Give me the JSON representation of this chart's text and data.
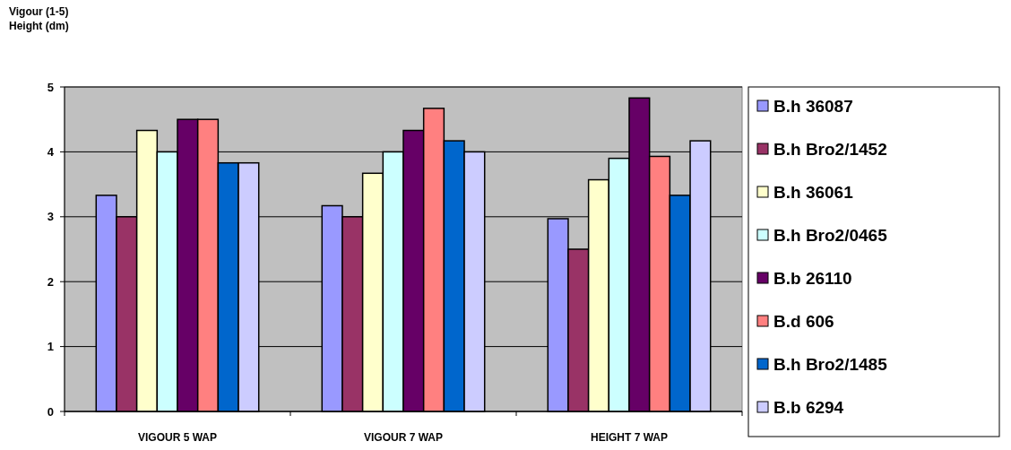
{
  "chart_data": {
    "type": "bar",
    "ylabel": "Vigour (1-5)\nHeight (dm)",
    "categories": [
      "VIGOUR 5 WAP",
      "VIGOUR 7 WAP",
      "HEIGHT 7 WAP"
    ],
    "series": [
      {
        "name": "B.h 36087",
        "color": "#9999ff",
        "values": [
          3.33,
          3.17,
          2.97
        ]
      },
      {
        "name": "B.h Bro2/1452",
        "color": "#993366",
        "values": [
          3,
          3,
          2.5
        ]
      },
      {
        "name": "B.h 36061",
        "color": "#ffffcc",
        "values": [
          4.33,
          3.67,
          3.57
        ]
      },
      {
        "name": "B.h Bro2/0465",
        "color": "#ccffff",
        "values": [
          4,
          4,
          3.9
        ]
      },
      {
        "name": "B.b 26110",
        "color": "#660066",
        "values": [
          4.5,
          4.33,
          4.83
        ]
      },
      {
        "name": "B.d 606",
        "color": "#ff8080",
        "values": [
          4.5,
          4.67,
          3.93
        ]
      },
      {
        "name": "B.h Bro2/1485",
        "color": "#0066cc",
        "values": [
          3.83,
          4.17,
          3.33
        ]
      },
      {
        "name": "B.b 6294",
        "color": "#ccccff",
        "values": [
          3.83,
          4,
          4.17
        ]
      }
    ],
    "ylim": [
      0,
      5
    ],
    "yticks": [
      0,
      1,
      2,
      3,
      4,
      5
    ],
    "grid": "y",
    "legend": "right"
  }
}
